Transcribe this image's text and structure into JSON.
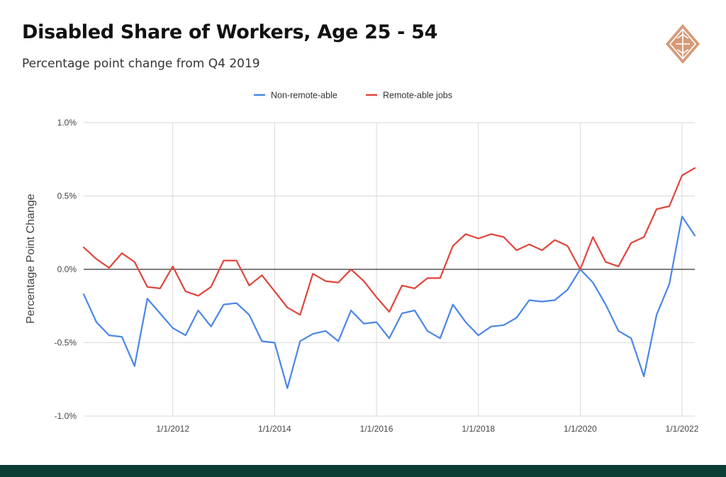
{
  "header": {
    "title": "Disabled Share of Workers, Age 25 - 54",
    "subtitle": "Percentage point change from Q4 2019"
  },
  "logo": {
    "icon": "diamond-logo-icon",
    "color": "#d69a78"
  },
  "footer": {
    "color": "#0b3d35"
  },
  "chart_data": {
    "type": "line",
    "title": "",
    "xlabel": "",
    "ylabel": "Percentage Point Change",
    "ylim": [
      -1.0,
      1.0
    ],
    "yticks": [
      1.0,
      0.5,
      0.0,
      -0.5,
      -1.0
    ],
    "ytick_labels": [
      "1.0%",
      "0.5%",
      "0.0%",
      "-0.5%",
      "-1.0%"
    ],
    "xlim": [
      2010.25,
      2022.25
    ],
    "xticks": [
      2012,
      2014,
      2016,
      2018,
      2020,
      2022
    ],
    "xtick_labels": [
      "1/1/2012",
      "1/1/2014",
      "1/1/2016",
      "1/1/2018",
      "1/1/2020",
      "1/1/2022"
    ],
    "grid": true,
    "legend_position": "top-center",
    "x_start": 2010.25,
    "x_step": 0.25,
    "series": [
      {
        "name": "Non-remote-able",
        "color": "#4a86e8",
        "values": [
          -0.17,
          -0.36,
          -0.45,
          -0.46,
          -0.66,
          -0.2,
          -0.3,
          -0.4,
          -0.45,
          -0.28,
          -0.39,
          -0.24,
          -0.23,
          -0.31,
          -0.49,
          -0.5,
          -0.81,
          -0.49,
          -0.44,
          -0.42,
          -0.49,
          -0.28,
          -0.37,
          -0.36,
          -0.47,
          -0.3,
          -0.28,
          -0.42,
          -0.47,
          -0.24,
          -0.36,
          -0.45,
          -0.39,
          -0.38,
          -0.33,
          -0.21,
          -0.22,
          -0.21,
          -0.14,
          0.0,
          -0.09,
          -0.24,
          -0.42,
          -0.47,
          -0.73,
          -0.31,
          -0.1,
          0.36,
          0.23
        ]
      },
      {
        "name": "Remote-able jobs",
        "color": "#e0453a",
        "values": [
          0.15,
          0.07,
          0.01,
          0.11,
          0.05,
          -0.12,
          -0.13,
          0.02,
          -0.15,
          -0.18,
          -0.12,
          0.06,
          0.06,
          -0.11,
          -0.04,
          -0.15,
          -0.26,
          -0.31,
          -0.03,
          -0.08,
          -0.09,
          0.0,
          -0.08,
          -0.19,
          -0.29,
          -0.11,
          -0.13,
          -0.06,
          -0.06,
          0.16,
          0.24,
          0.21,
          0.24,
          0.22,
          0.13,
          0.17,
          0.13,
          0.2,
          0.16,
          0.0,
          0.22,
          0.05,
          0.02,
          0.18,
          0.22,
          0.41,
          0.43,
          0.64,
          0.69
        ]
      }
    ]
  }
}
